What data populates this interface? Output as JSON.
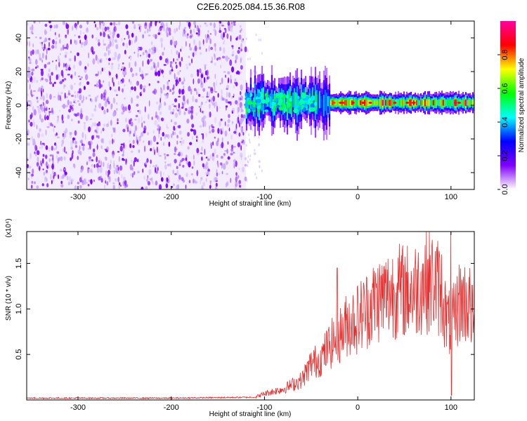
{
  "chart_data": [
    {
      "type": "heatmap",
      "title": "C2E6.2025.084.15.36.R08",
      "xlabel": "Height of straight line (km)",
      "ylabel": "Frequency (Hz)",
      "xlim": [
        -355,
        125
      ],
      "ylim": [
        -50,
        50
      ],
      "xticks": [
        -300,
        -200,
        -100,
        0,
        100
      ],
      "xtick_labels": [
        "-300",
        "-200",
        "-100",
        "0",
        "100"
      ],
      "yticks": [
        -40,
        -20,
        0,
        20,
        40
      ],
      "ytick_labels": [
        "-40",
        "-20",
        "0",
        "20",
        "40"
      ],
      "noise_region_x": [
        -355,
        -120
      ],
      "signal_band": {
        "x": [
          -120,
          125
        ],
        "center_freq": 1.5,
        "amplitude_max": 0.95
      },
      "colorbar": {
        "label": "Normalized spectral amplitude",
        "range": [
          0.0,
          1.0
        ],
        "ticks": [
          0.0,
          0.2,
          0.4,
          0.6,
          0.8
        ],
        "tick_labels": [
          "0.0",
          "0.2",
          "0.4",
          "0.6",
          "0.8"
        ],
        "colors": [
          "#ffffff",
          "#8000ff",
          "#0000ff",
          "#00ffff",
          "#00ff00",
          "#ffff00",
          "#ff0000",
          "#ff00a0"
        ]
      },
      "noise_color": "#7a00ff"
    },
    {
      "type": "line",
      "xlabel": "Height of straight line (km)",
      "ylabel": "SNR (10 * v/v)",
      "y_scale_label": "(x10⁴)",
      "xlim": [
        -355,
        125
      ],
      "ylim": [
        0,
        1.85
      ],
      "xticks": [
        -300,
        -200,
        -100,
        0,
        100
      ],
      "xtick_labels": [
        "-300",
        "-200",
        "-100",
        "0",
        "100"
      ],
      "yticks": [
        0.5,
        1.0,
        1.5
      ],
      "ytick_labels": [
        "0.5",
        "1.0",
        "1.5"
      ],
      "series": [
        {
          "name": "SNR",
          "color": "#e83030",
          "x": [
            -355,
            -200,
            -110,
            -100,
            -80,
            -60,
            -50,
            -40,
            -30,
            -20,
            -10,
            0,
            10,
            20,
            30,
            40,
            50,
            60,
            70,
            80,
            90,
            95,
            100,
            110,
            120,
            125
          ],
          "y": [
            0.02,
            0.02,
            0.03,
            0.07,
            0.12,
            0.22,
            0.4,
            0.45,
            0.6,
            0.7,
            0.85,
            0.9,
            1.0,
            1.1,
            1.15,
            1.2,
            1.2,
            1.2,
            1.3,
            1.3,
            1.2,
            0.9,
            0.8,
            1.1,
            1.05,
            0.8
          ]
        }
      ],
      "features": {
        "spike_at": -22,
        "spike_value": 1.45,
        "max_at": 100,
        "max_value": 1.85,
        "min_at": 100,
        "min_value": 0.05
      }
    }
  ]
}
